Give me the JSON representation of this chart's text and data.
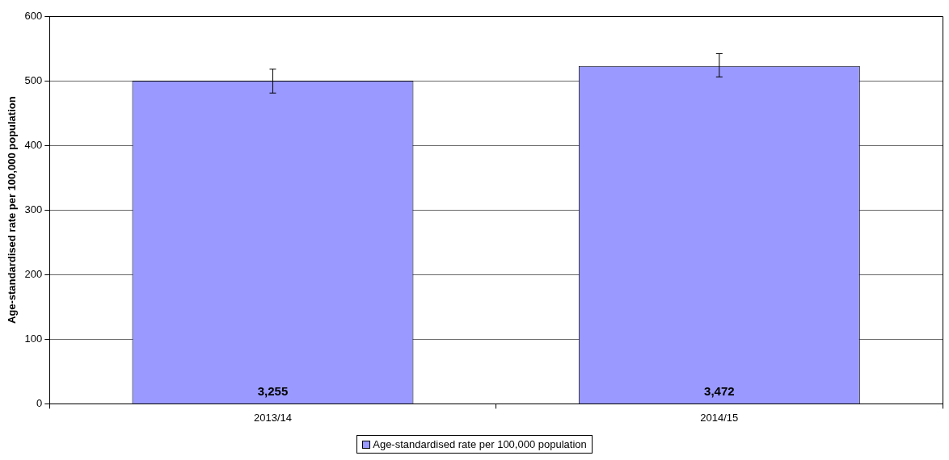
{
  "chart_data": {
    "type": "bar",
    "ylabel": "Age-standardised rate per 100,000 population",
    "categories": [
      "2013/14",
      "2014/15"
    ],
    "series": [
      {
        "name": "Age-standardised rate per 100,000 population",
        "color": "#9999ff",
        "values": [
          500,
          523
        ],
        "errors": [
          [
            481,
            518
          ],
          [
            506,
            542
          ]
        ]
      }
    ],
    "annotations": [
      "3,255",
      "3,472"
    ],
    "ylim": [
      0,
      600
    ],
    "yticks": [
      0,
      100,
      200,
      300,
      400,
      500,
      600
    ],
    "grid": "y",
    "legend": "bottom"
  }
}
